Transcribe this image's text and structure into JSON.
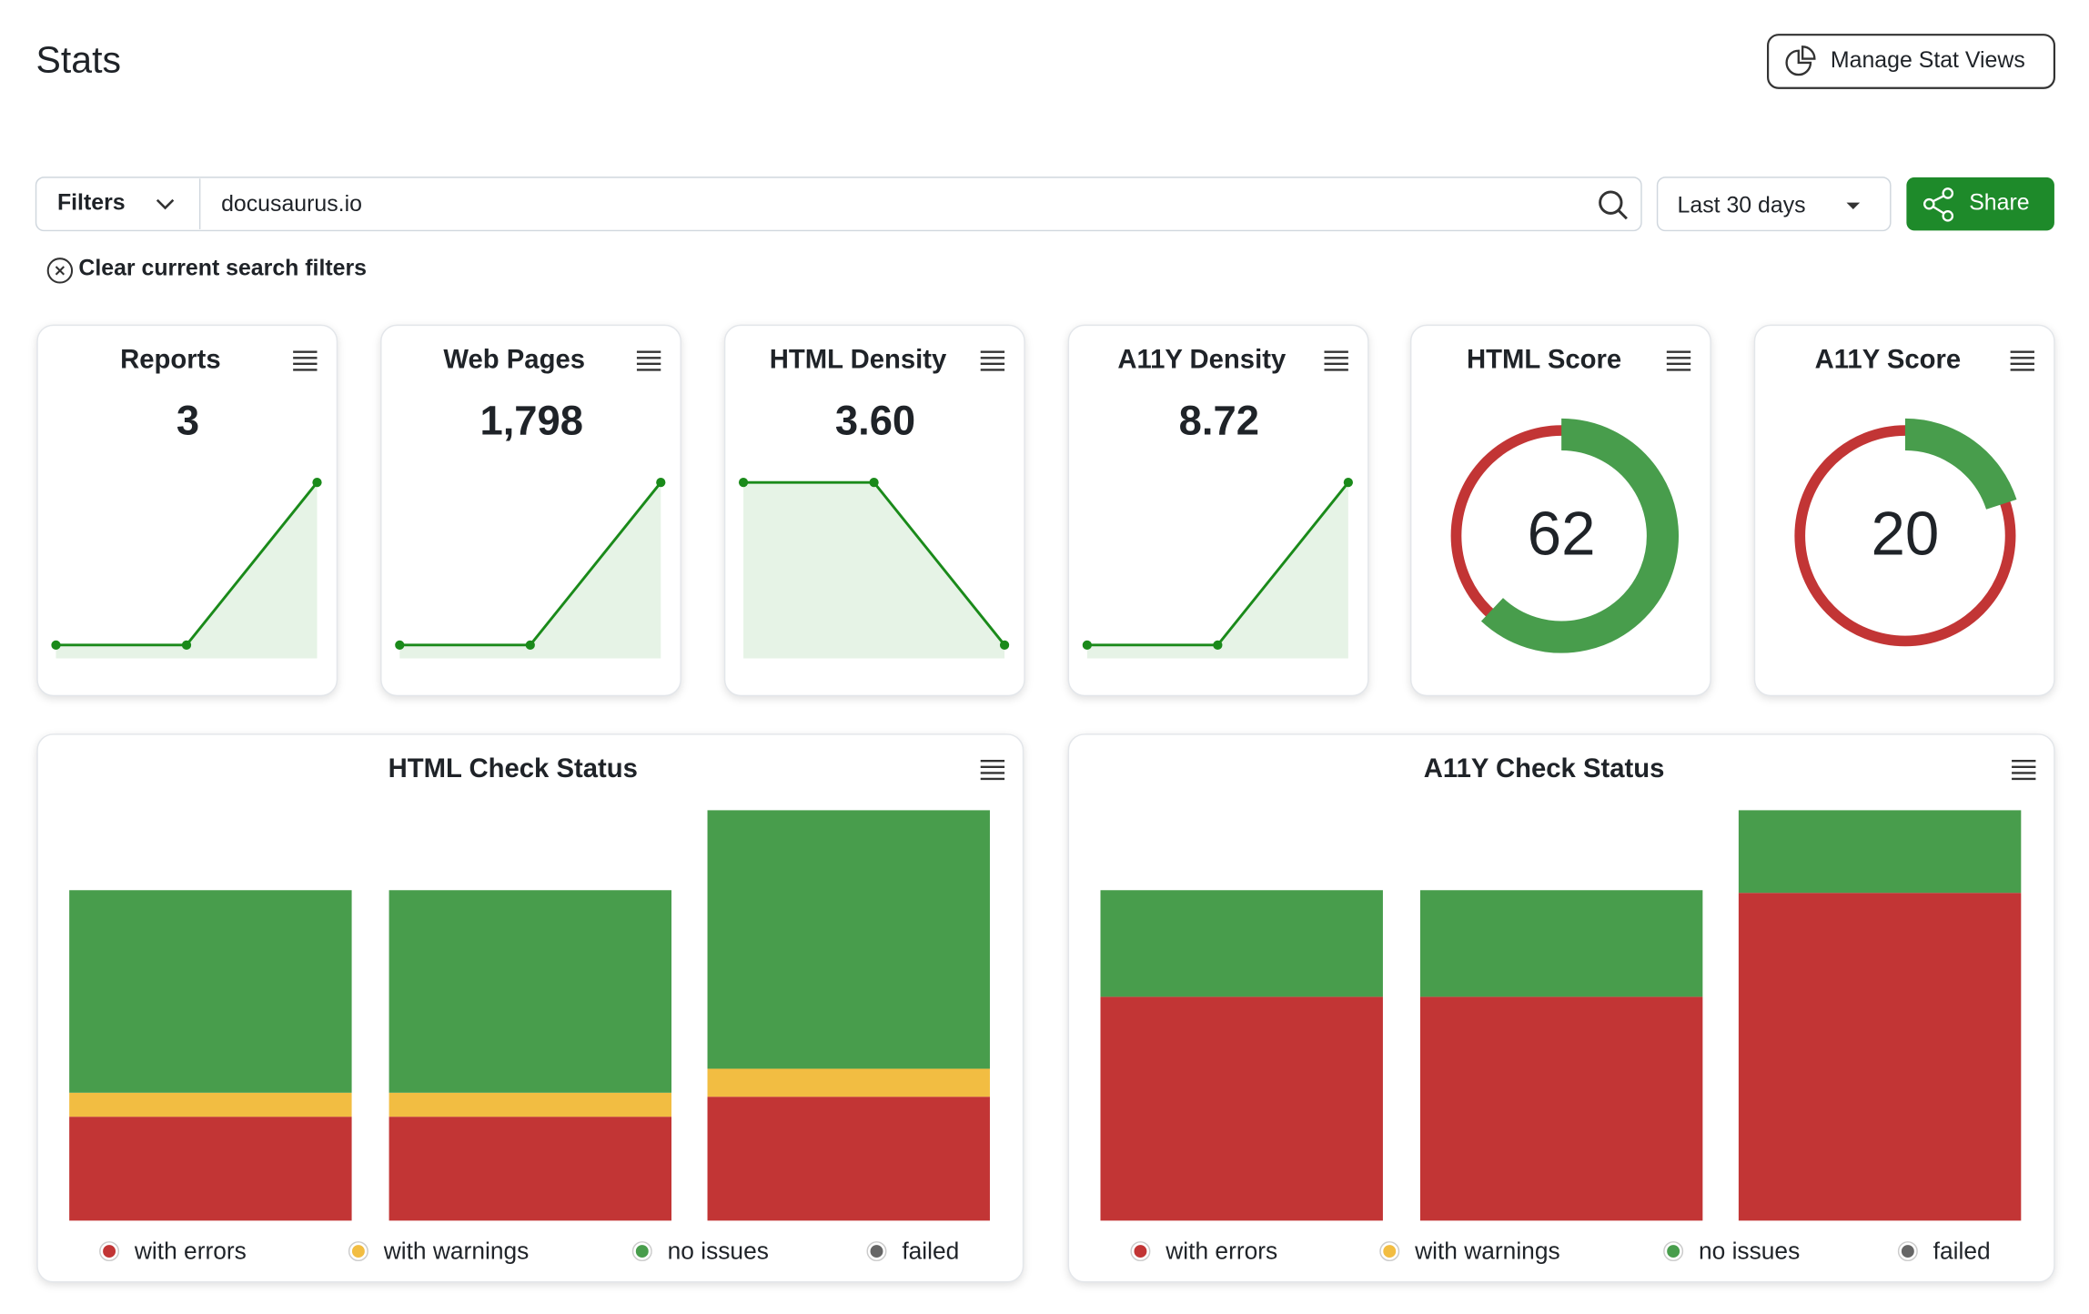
{
  "header": {
    "title": "Stats",
    "manage_button": "Manage Stat Views"
  },
  "filters": {
    "label": "Filters",
    "query": "docusaurus.io",
    "date_range": "Last 30 days",
    "share": "Share",
    "clear": "Clear current search filters"
  },
  "stat_cards": [
    {
      "type": "line",
      "title": "Reports",
      "value": 3,
      "value_label": "3",
      "values": [
        1,
        1,
        3
      ]
    },
    {
      "type": "line",
      "title": "Web Pages",
      "value": 1798,
      "value_label": "1,798",
      "values": [
        600,
        600,
        1798
      ]
    },
    {
      "type": "line",
      "title": "HTML Density",
      "value": 3.6,
      "value_label": "3.60",
      "values": [
        3.8,
        3.8,
        3.6
      ]
    },
    {
      "type": "line",
      "title": "A11Y Density",
      "value": 8.72,
      "value_label": "8.72",
      "values": [
        8.5,
        8.5,
        8.72
      ]
    }
  ],
  "score_cards": [
    {
      "type": "gauge",
      "title": "HTML Score",
      "value": 62,
      "max": 100
    },
    {
      "type": "gauge",
      "title": "A11Y Score",
      "value": 20,
      "max": 100
    }
  ],
  "charts": [
    {
      "type": "stacked_bar",
      "title": "HTML Check Status",
      "series": [
        {
          "name": "with errors",
          "color": "#c23535",
          "values": [
            78,
            78,
            93
          ]
        },
        {
          "name": "with warnings",
          "color": "#f2bd42",
          "values": [
            18,
            18,
            21
          ]
        },
        {
          "name": "no issues",
          "color": "#489d4c",
          "values": [
            152,
            152,
            194
          ]
        },
        {
          "name": "failed",
          "color": "#666666",
          "values": [
            0,
            0,
            0
          ]
        }
      ]
    },
    {
      "type": "stacked_bar",
      "title": "A11Y Check Status",
      "series": [
        {
          "name": "with errors",
          "color": "#c23535",
          "values": [
            168,
            168,
            246
          ]
        },
        {
          "name": "with warnings",
          "color": "#f2bd42",
          "values": [
            0,
            0,
            0
          ]
        },
        {
          "name": "no issues",
          "color": "#489d4c",
          "values": [
            80,
            80,
            62
          ]
        },
        {
          "name": "failed",
          "color": "#666666",
          "values": [
            0,
            0,
            0
          ]
        }
      ]
    }
  ]
}
